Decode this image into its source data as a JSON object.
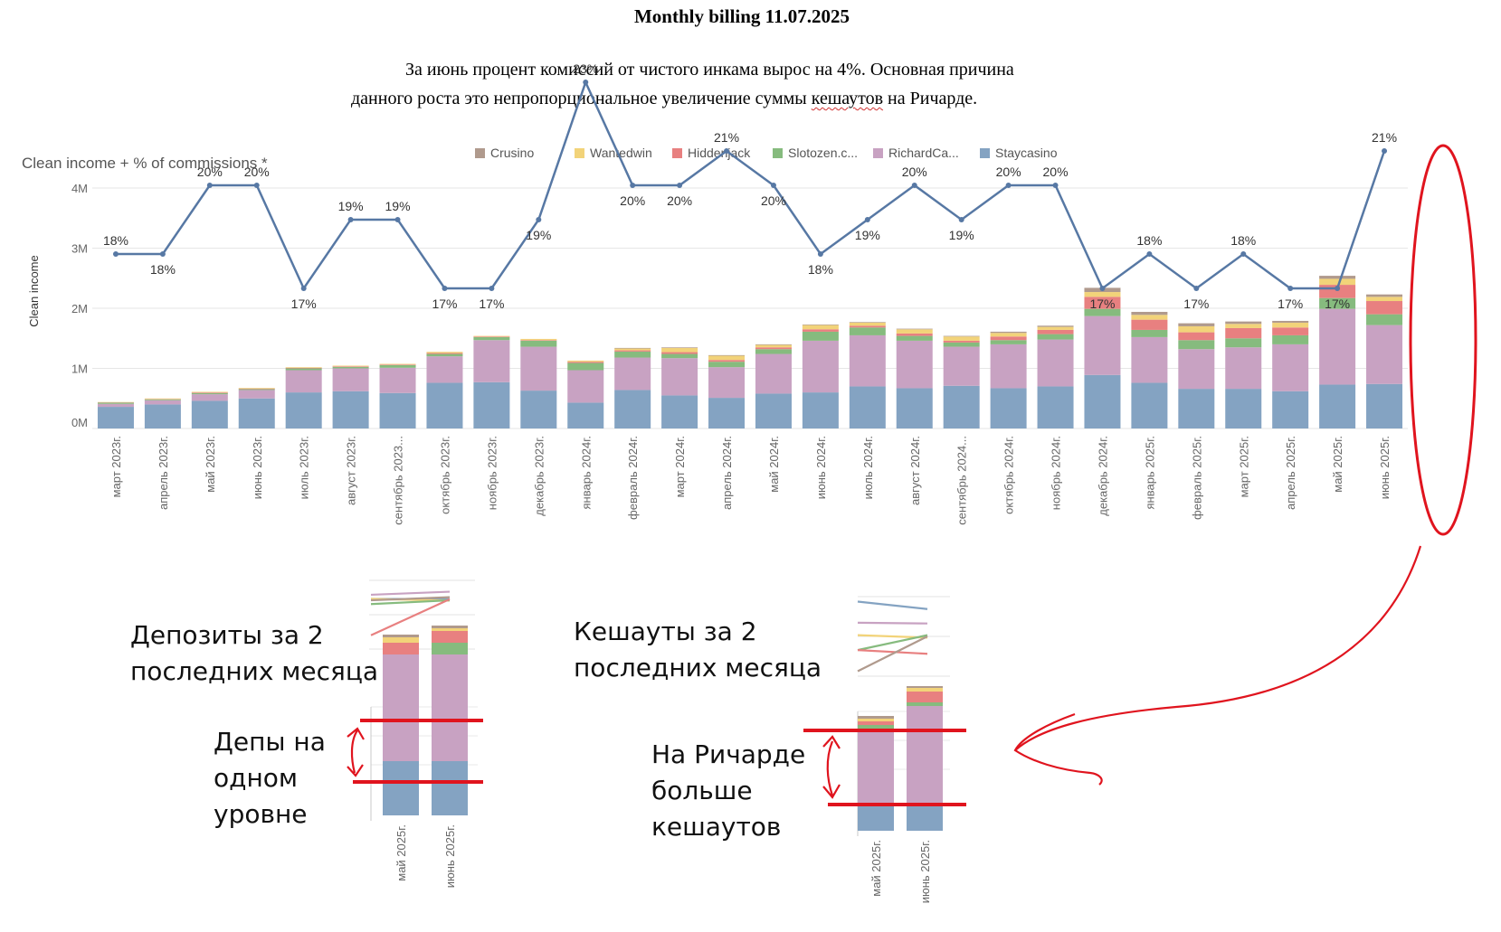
{
  "doc": {
    "title": "Monthly billing 11.07.2025",
    "para_line1": "За июнь процент комиссий от чистого инкама вырос на 4%. Основная причина",
    "para_line2_a": "данного роста это непропорциональное увеличение суммы ",
    "para_line2_b": "кешаутов",
    "para_line2_c": " на Ричарде."
  },
  "annotations": {
    "deposits_l1": "Депозиты за 2",
    "deposits_l2": "последних месяца",
    "cashouts_l1": "Кешауты за 2",
    "cashouts_l2": "последних месяца",
    "deps_l1": "Депы на",
    "deps_l2": "одном",
    "deps_l3": "уровне",
    "richard_l1": "На Ричарде",
    "richard_l2": "больше",
    "richard_l3": "кешаутов"
  },
  "colors": {
    "Staycasino": "#84a3c2",
    "RichardCa...": "#c8a2c2",
    "Slotozen.c...": "#86bb7e",
    "Hiddenjack": "#e88080",
    "Wantedwin": "#f2d379",
    "Crusino": "#b09a8d",
    "line": "#5778a4",
    "annotation": "#e0141e"
  },
  "chart_data": [
    {
      "type": "bar+line",
      "title": "Clean income + % of commissions *",
      "ylabel": "Clean income",
      "ylim": [
        0,
        4000000
      ],
      "yticks": [
        "0M",
        "1M",
        "2M",
        "3M",
        "4M"
      ],
      "legend_position": "top",
      "categories": [
        "март 2023г.",
        "апрель 2023г.",
        "май 2023г.",
        "июнь 2023г.",
        "июль 2023г.",
        "август 2023г.",
        "сентябрь 2023...",
        "октябрь 2023г.",
        "ноябрь 2023г.",
        "декабрь 2023г.",
        "январь 2024г.",
        "февраль 2024г.",
        "март 2024г.",
        "апрель 2024г.",
        "май 2024г.",
        "июнь 2024г.",
        "июль 2024г.",
        "август 2024г.",
        "сентябрь 2024...",
        "октябрь 2024г.",
        "ноябрь 2024г.",
        "декабрь 2024г.",
        "январь 2025г.",
        "февраль 2025г.",
        "март 2025г.",
        "апрель 2025г.",
        "май 2025г.",
        "июнь 2025г."
      ],
      "series": [
        {
          "name": "Staycasino",
          "values": [
            360000,
            400000,
            460000,
            500000,
            600000,
            620000,
            590000,
            760000,
            770000,
            630000,
            430000,
            640000,
            550000,
            510000,
            580000,
            600000,
            700000,
            670000,
            710000,
            670000,
            700000,
            890000,
            760000,
            660000,
            660000,
            620000,
            730000,
            740000
          ]
        },
        {
          "name": "RichardCa...",
          "values": [
            50000,
            70000,
            110000,
            140000,
            370000,
            380000,
            420000,
            440000,
            700000,
            730000,
            540000,
            540000,
            620000,
            510000,
            660000,
            860000,
            850000,
            790000,
            650000,
            730000,
            780000,
            980000,
            760000,
            660000,
            690000,
            780000,
            1260000,
            980000
          ]
        },
        {
          "name": "Slotozen.c...",
          "values": [
            20000,
            15000,
            20000,
            15000,
            30000,
            25000,
            45000,
            40000,
            50000,
            100000,
            120000,
            100000,
            70000,
            90000,
            80000,
            150000,
            130000,
            80000,
            70000,
            70000,
            90000,
            120000,
            120000,
            150000,
            150000,
            150000,
            180000,
            180000
          ]
        },
        {
          "name": "Hiddenjack",
          "values": [
            5000,
            5000,
            10000,
            10000,
            10000,
            10000,
            10000,
            15000,
            10000,
            10000,
            20000,
            20000,
            30000,
            30000,
            30000,
            40000,
            30000,
            40000,
            30000,
            60000,
            70000,
            200000,
            170000,
            130000,
            170000,
            130000,
            220000,
            220000
          ]
        },
        {
          "name": "Wantedwin",
          "values": [
            5000,
            10000,
            10000,
            10000,
            10000,
            10000,
            10000,
            20000,
            10000,
            20000,
            20000,
            30000,
            70000,
            70000,
            40000,
            70000,
            50000,
            70000,
            70000,
            60000,
            50000,
            80000,
            80000,
            100000,
            70000,
            80000,
            100000,
            70000
          ]
        },
        {
          "name": "Crusino",
          "values": [
            0,
            0,
            0,
            0,
            0,
            0,
            0,
            0,
            0,
            0,
            0,
            10000,
            10000,
            10000,
            10000,
            10000,
            10000,
            10000,
            10000,
            20000,
            20000,
            70000,
            50000,
            50000,
            40000,
            30000,
            50000,
            40000
          ]
        }
      ],
      "line": {
        "name": "% of commissions",
        "values": [
          18,
          18,
          20,
          20,
          17,
          19,
          19,
          17,
          17,
          19,
          23,
          20,
          20,
          21,
          20,
          18,
          19,
          20,
          19,
          20,
          20,
          17,
          18,
          17,
          18,
          17,
          17,
          21
        ],
        "labels": [
          "18%",
          "18%",
          "20%",
          "20%",
          "17%",
          "19%",
          "19%",
          "17%",
          "17%",
          "19%",
          "23%",
          "20%",
          "20%",
          "21%",
          "20%",
          "18%",
          "19%",
          "20%",
          "19%",
          "20%",
          "20%",
          "17%",
          "18%",
          "17%",
          "18%",
          "17%",
          "17%",
          "21%"
        ]
      }
    },
    {
      "type": "line",
      "title": "",
      "categories": [
        "май 2025г.",
        "июнь 2025г."
      ],
      "series": [
        {
          "name": "RichardCa...",
          "values": [
            0.58,
            0.67
          ]
        },
        {
          "name": "Staycasino",
          "values": [
            0.46,
            0.45
          ]
        },
        {
          "name": "Wantedwin",
          "values": [
            0.46,
            0.41
          ]
        },
        {
          "name": "Crusino",
          "values": [
            0.42,
            0.51
          ]
        },
        {
          "name": "Slotozen.c...",
          "values": [
            0.31,
            0.42
          ]
        },
        {
          "name": "Hiddenjack",
          "values": [
            -0.6,
            0.45
          ]
        }
      ]
    },
    {
      "type": "bar",
      "title": "",
      "categories": [
        "май 2025г.",
        "июнь 2025г."
      ],
      "series": [
        {
          "name": "Staycasino",
          "values": [
            60,
            60
          ]
        },
        {
          "name": "RichardCa...",
          "values": [
            118,
            118
          ]
        },
        {
          "name": "Slotozen.c...",
          "values": [
            0,
            13
          ]
        },
        {
          "name": "Hiddenjack",
          "values": [
            13,
            13
          ]
        },
        {
          "name": "Wantedwin",
          "values": [
            6,
            3
          ]
        },
        {
          "name": "Crusino",
          "values": [
            3,
            3
          ]
        }
      ]
    },
    {
      "type": "line",
      "title": "",
      "categories": [
        "май 2025г.",
        "июнь 2025г."
      ],
      "series": [
        {
          "name": "Staycasino",
          "values": [
            1.4,
            1.1
          ]
        },
        {
          "name": "RichardCa...",
          "values": [
            0.55,
            0.52
          ]
        },
        {
          "name": "Wantedwin",
          "values": [
            0.05,
            -0.05
          ]
        },
        {
          "name": "Slotozen.c...",
          "values": [
            -0.55,
            0.05
          ]
        },
        {
          "name": "Hiddenjack",
          "values": [
            -0.55,
            -0.7
          ]
        },
        {
          "name": "Crusino",
          "values": [
            -1.4,
            0.0
          ]
        }
      ]
    },
    {
      "type": "bar",
      "title": "",
      "categories": [
        "май 2025г.",
        "июнь 2025г."
      ],
      "series": [
        {
          "name": "Staycasino",
          "values": [
            28,
            28
          ]
        },
        {
          "name": "RichardCa...",
          "values": [
            82,
            110
          ]
        },
        {
          "name": "Slotozen.c...",
          "values": [
            7,
            4
          ]
        },
        {
          "name": "Hiddenjack",
          "values": [
            4,
            12
          ]
        },
        {
          "name": "Wantedwin",
          "values": [
            3,
            4
          ]
        },
        {
          "name": "Crusino",
          "values": [
            3,
            2
          ]
        }
      ]
    }
  ]
}
